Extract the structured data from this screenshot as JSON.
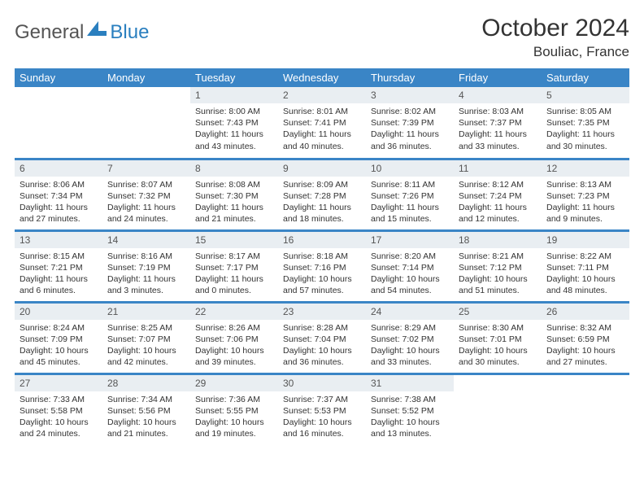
{
  "logo": {
    "text1": "General",
    "text2": "Blue"
  },
  "title": "October 2024",
  "location": "Bouliac, France",
  "colors": {
    "header_bg": "#3a85c6",
    "header_text": "#ffffff",
    "daynum_bg": "#e9eef2",
    "row_divider": "#3a85c6",
    "logo_gray": "#555555",
    "logo_blue": "#2a7fbf"
  },
  "weekdays": [
    "Sunday",
    "Monday",
    "Tuesday",
    "Wednesday",
    "Thursday",
    "Friday",
    "Saturday"
  ],
  "weeks": [
    [
      null,
      null,
      {
        "n": "1",
        "sr": "8:00 AM",
        "ss": "7:43 PM",
        "dl": "11 hours and 43 minutes."
      },
      {
        "n": "2",
        "sr": "8:01 AM",
        "ss": "7:41 PM",
        "dl": "11 hours and 40 minutes."
      },
      {
        "n": "3",
        "sr": "8:02 AM",
        "ss": "7:39 PM",
        "dl": "11 hours and 36 minutes."
      },
      {
        "n": "4",
        "sr": "8:03 AM",
        "ss": "7:37 PM",
        "dl": "11 hours and 33 minutes."
      },
      {
        "n": "5",
        "sr": "8:05 AM",
        "ss": "7:35 PM",
        "dl": "11 hours and 30 minutes."
      }
    ],
    [
      {
        "n": "6",
        "sr": "8:06 AM",
        "ss": "7:34 PM",
        "dl": "11 hours and 27 minutes."
      },
      {
        "n": "7",
        "sr": "8:07 AM",
        "ss": "7:32 PM",
        "dl": "11 hours and 24 minutes."
      },
      {
        "n": "8",
        "sr": "8:08 AM",
        "ss": "7:30 PM",
        "dl": "11 hours and 21 minutes."
      },
      {
        "n": "9",
        "sr": "8:09 AM",
        "ss": "7:28 PM",
        "dl": "11 hours and 18 minutes."
      },
      {
        "n": "10",
        "sr": "8:11 AM",
        "ss": "7:26 PM",
        "dl": "11 hours and 15 minutes."
      },
      {
        "n": "11",
        "sr": "8:12 AM",
        "ss": "7:24 PM",
        "dl": "11 hours and 12 minutes."
      },
      {
        "n": "12",
        "sr": "8:13 AM",
        "ss": "7:23 PM",
        "dl": "11 hours and 9 minutes."
      }
    ],
    [
      {
        "n": "13",
        "sr": "8:15 AM",
        "ss": "7:21 PM",
        "dl": "11 hours and 6 minutes."
      },
      {
        "n": "14",
        "sr": "8:16 AM",
        "ss": "7:19 PM",
        "dl": "11 hours and 3 minutes."
      },
      {
        "n": "15",
        "sr": "8:17 AM",
        "ss": "7:17 PM",
        "dl": "11 hours and 0 minutes."
      },
      {
        "n": "16",
        "sr": "8:18 AM",
        "ss": "7:16 PM",
        "dl": "10 hours and 57 minutes."
      },
      {
        "n": "17",
        "sr": "8:20 AM",
        "ss": "7:14 PM",
        "dl": "10 hours and 54 minutes."
      },
      {
        "n": "18",
        "sr": "8:21 AM",
        "ss": "7:12 PM",
        "dl": "10 hours and 51 minutes."
      },
      {
        "n": "19",
        "sr": "8:22 AM",
        "ss": "7:11 PM",
        "dl": "10 hours and 48 minutes."
      }
    ],
    [
      {
        "n": "20",
        "sr": "8:24 AM",
        "ss": "7:09 PM",
        "dl": "10 hours and 45 minutes."
      },
      {
        "n": "21",
        "sr": "8:25 AM",
        "ss": "7:07 PM",
        "dl": "10 hours and 42 minutes."
      },
      {
        "n": "22",
        "sr": "8:26 AM",
        "ss": "7:06 PM",
        "dl": "10 hours and 39 minutes."
      },
      {
        "n": "23",
        "sr": "8:28 AM",
        "ss": "7:04 PM",
        "dl": "10 hours and 36 minutes."
      },
      {
        "n": "24",
        "sr": "8:29 AM",
        "ss": "7:02 PM",
        "dl": "10 hours and 33 minutes."
      },
      {
        "n": "25",
        "sr": "8:30 AM",
        "ss": "7:01 PM",
        "dl": "10 hours and 30 minutes."
      },
      {
        "n": "26",
        "sr": "8:32 AM",
        "ss": "6:59 PM",
        "dl": "10 hours and 27 minutes."
      }
    ],
    [
      {
        "n": "27",
        "sr": "7:33 AM",
        "ss": "5:58 PM",
        "dl": "10 hours and 24 minutes."
      },
      {
        "n": "28",
        "sr": "7:34 AM",
        "ss": "5:56 PM",
        "dl": "10 hours and 21 minutes."
      },
      {
        "n": "29",
        "sr": "7:36 AM",
        "ss": "5:55 PM",
        "dl": "10 hours and 19 minutes."
      },
      {
        "n": "30",
        "sr": "7:37 AM",
        "ss": "5:53 PM",
        "dl": "10 hours and 16 minutes."
      },
      {
        "n": "31",
        "sr": "7:38 AM",
        "ss": "5:52 PM",
        "dl": "10 hours and 13 minutes."
      },
      null,
      null
    ]
  ],
  "labels": {
    "sunrise": "Sunrise: ",
    "sunset": "Sunset: ",
    "daylight": "Daylight: "
  }
}
